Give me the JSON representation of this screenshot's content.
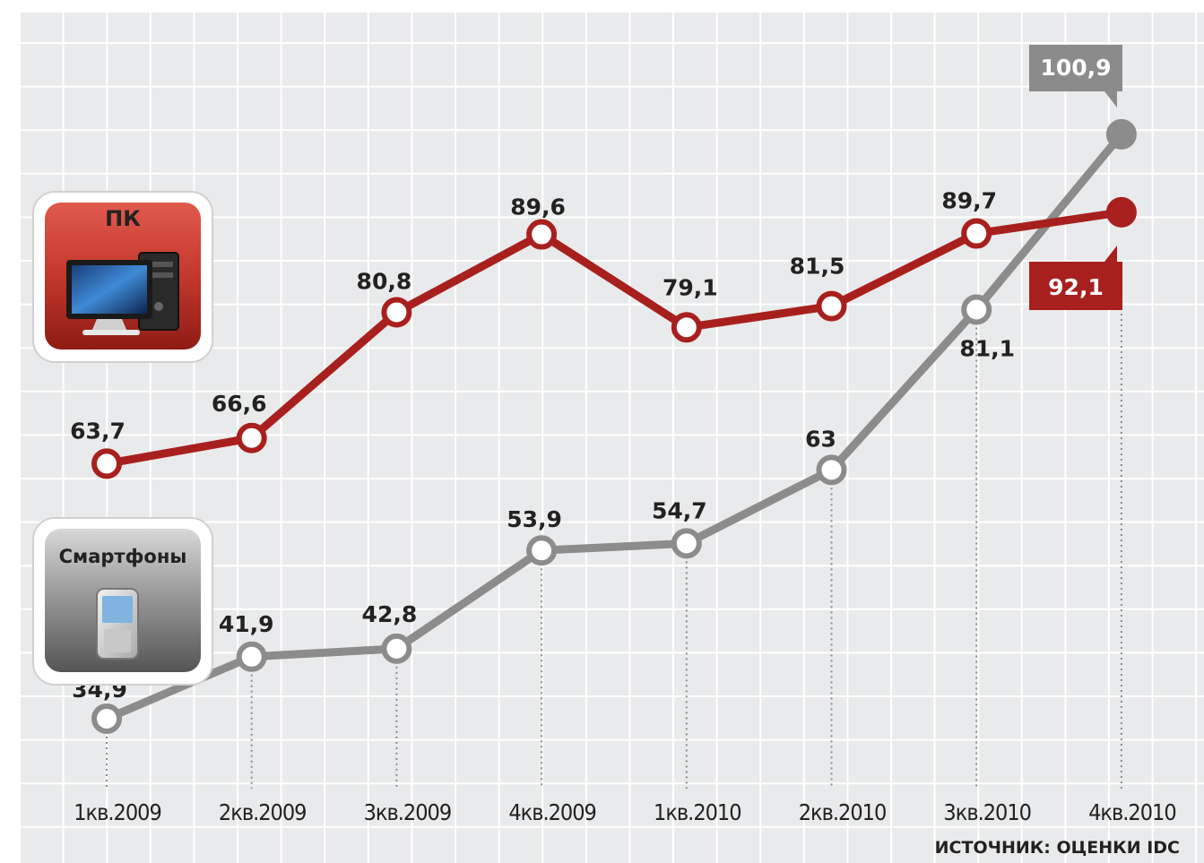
{
  "chart_data": {
    "type": "line",
    "categories": [
      "1кв.2009",
      "2кв.2009",
      "3кв.2009",
      "4кв.2009",
      "1кв.2010",
      "2кв.2010",
      "3кв.2010",
      "4кв.2010"
    ],
    "series": [
      {
        "name": "ПК",
        "values": [
          63.7,
          66.6,
          80.8,
          89.6,
          79.1,
          81.5,
          89.7,
          92.1
        ],
        "labels": [
          "63,7",
          "66,6",
          "80,8",
          "89,6",
          "79,1",
          "81,5",
          "89,7",
          "92,1"
        ],
        "color": "#a8201e"
      },
      {
        "name": "Смартфоны",
        "values": [
          34.9,
          41.9,
          42.8,
          53.9,
          54.7,
          63,
          81.1,
          100.9
        ],
        "labels": [
          "34,9",
          "41,9",
          "42,8",
          "53,9",
          "54,7",
          "63",
          "81,1",
          "100,9"
        ],
        "color": "#8c8c8c"
      }
    ],
    "title": "",
    "xlabel": "",
    "ylabel": "",
    "ylim": [
      27,
      110
    ],
    "grid": true,
    "legend": "left",
    "source": "ИСТОЧНИК: ОЦЕНКИ IDC",
    "background": "#e9eaeb",
    "grid_color": "#ffffff"
  }
}
